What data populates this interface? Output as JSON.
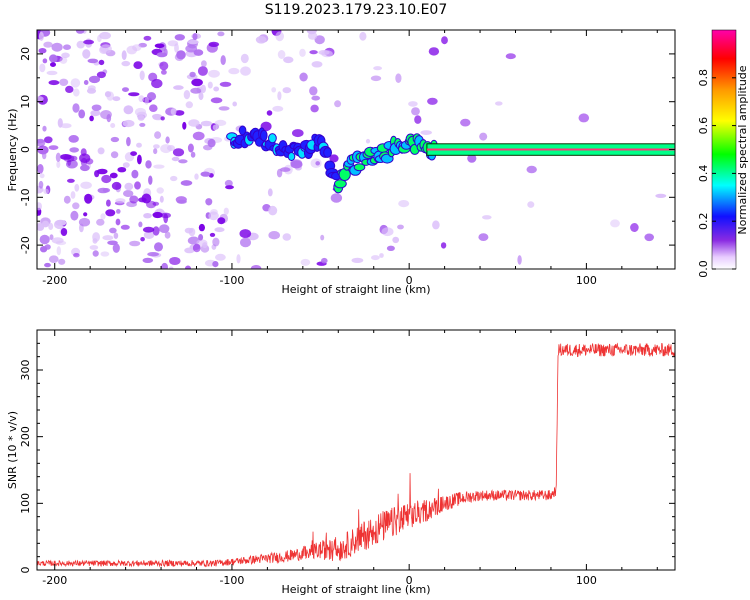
{
  "title": "S119.2023.179.23.10.E07",
  "colors": {
    "snr_line": "#ee3333",
    "ridge_line": "#ff3377",
    "spectrogram_speckle": "#8a2be2"
  },
  "chart_data": [
    {
      "type": "heatmap",
      "title": "S119.2023.179.23.10.E07",
      "xlabel": "Height of straight line (km)",
      "ylabel": "Frequency (Hz)",
      "xlim": [
        -210,
        150
      ],
      "ylim": [
        -25,
        25
      ],
      "x_ticks": [
        -200,
        -100,
        0,
        100
      ],
      "y_ticks": [
        -20,
        -10,
        0,
        10,
        20
      ],
      "x_tick_labels": [
        "-200",
        "-100",
        "0",
        "100"
      ],
      "y_tick_labels": [
        "-20",
        "-10",
        "0",
        "10",
        "20"
      ],
      "colorbar": {
        "label": "Normalized spectral amplitude",
        "range": [
          0,
          1
        ],
        "ticks": [
          0.0,
          0.2,
          0.4,
          0.6,
          0.8
        ],
        "tick_labels": [
          "0.0",
          "0.2",
          "0.4",
          "0.6",
          "0.8"
        ],
        "colormap": "rainbow"
      },
      "ridge": {
        "x": [
          -100,
          -90,
          -80,
          -70,
          -60,
          -50,
          -45,
          -40,
          -35,
          -30,
          -25,
          -20,
          -15,
          -10,
          -5,
          0,
          5,
          10,
          20,
          150
        ],
        "y": [
          2,
          3,
          2,
          -1,
          0,
          2,
          -2,
          -8,
          -3,
          -3,
          -2,
          -1,
          -1,
          0,
          1,
          2,
          1,
          0,
          0,
          0
        ]
      }
    },
    {
      "type": "line",
      "xlabel": "Height of straight line (km)",
      "ylabel": "SNR (10 * v/v)",
      "xlim": [
        -210,
        150
      ],
      "ylim": [
        0,
        360
      ],
      "x_ticks": [
        -200,
        -100,
        0,
        100
      ],
      "y_ticks": [
        0,
        100,
        200,
        300
      ],
      "x_tick_labels": [
        "-200",
        "-100",
        "0",
        "100"
      ],
      "y_tick_labels": [
        "0",
        "100",
        "200",
        "300"
      ],
      "trend": {
        "x": [
          -210,
          -150,
          -110,
          -90,
          -70,
          -60,
          -50,
          -40,
          -30,
          -20,
          -10,
          0,
          10,
          20,
          30,
          40,
          60,
          80,
          83,
          84,
          150
        ],
        "y": [
          10,
          10,
          10,
          15,
          20,
          25,
          30,
          30,
          45,
          60,
          70,
          80,
          90,
          100,
          108,
          112,
          112,
          112,
          120,
          330,
          330
        ]
      },
      "noise": {
        "x": [
          -210,
          -100,
          -60,
          -40,
          -20,
          0,
          20,
          40,
          83,
          84,
          150
        ],
        "amplitude": [
          4,
          5,
          10,
          18,
          25,
          22,
          12,
          8,
          8,
          10,
          10
        ]
      }
    }
  ]
}
